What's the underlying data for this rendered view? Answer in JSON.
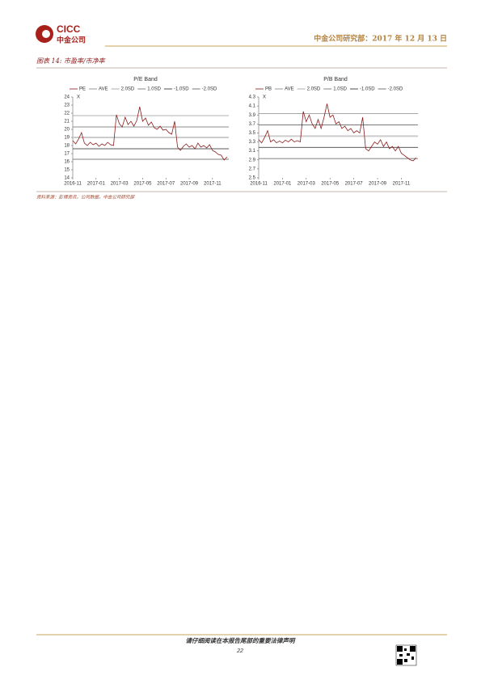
{
  "header": {
    "logo_text": "CICC",
    "logo_sub": "中金公司",
    "right": "中金公司研究部：2017 年 12 月 13 日"
  },
  "figure_title": "图表 14: 市盈率/市净率",
  "source": "资料来源：彭博资讯，公司数据，中金公司研究部",
  "footer": {
    "notice": "请仔细阅读在本报告尾部的重要法律声明",
    "page": "22"
  },
  "chart_data": [
    {
      "type": "line",
      "title": "P/E Band",
      "ylabel": "X",
      "xlim": [
        0,
        13.4
      ],
      "xticks": [
        {
          "value": 0,
          "label": "2016-11"
        },
        {
          "value": 2,
          "label": "2017-01"
        },
        {
          "value": 4,
          "label": "2017-03"
        },
        {
          "value": 6,
          "label": "2017-05"
        },
        {
          "value": 8,
          "label": "2017-07"
        },
        {
          "value": 10,
          "label": "2017-09"
        },
        {
          "value": 12,
          "label": "2017-11"
        }
      ],
      "ylim": [
        14,
        24
      ],
      "yticks": [
        14,
        15,
        16,
        17,
        18,
        19,
        20,
        21,
        22,
        23,
        24
      ],
      "series": [
        {
          "name": "PE",
          "color": "#8b1a1a",
          "x": [
            0,
            0.25,
            0.5,
            0.75,
            1,
            1.25,
            1.5,
            1.75,
            2,
            2.25,
            2.5,
            2.75,
            3,
            3.25,
            3.5,
            3.75,
            4,
            4.25,
            4.5,
            4.75,
            5,
            5.25,
            5.5,
            5.75,
            6,
            6.25,
            6.5,
            6.75,
            7,
            7.25,
            7.5,
            7.75,
            8,
            8.25,
            8.5,
            8.75,
            9,
            9.25,
            9.5,
            9.75,
            10,
            10.25,
            10.5,
            10.75,
            11,
            11.25,
            11.5,
            11.75,
            12,
            12.25,
            12.5,
            12.75,
            13,
            13.25
          ],
          "values": [
            18.6,
            18.2,
            18.8,
            19.6,
            18.3,
            18.0,
            18.4,
            18.1,
            18.3,
            17.9,
            18.2,
            18.0,
            18.4,
            18.1,
            18.0,
            21.8,
            20.7,
            20.3,
            21.5,
            20.6,
            21.0,
            20.4,
            21.1,
            22.8,
            21.0,
            21.4,
            20.5,
            20.9,
            20.2,
            20.0,
            20.4,
            19.9,
            20.0,
            19.6,
            19.4,
            21.0,
            17.8,
            17.4,
            17.9,
            18.2,
            17.8,
            18.0,
            17.6,
            18.3,
            17.8,
            18.0,
            17.7,
            18.1,
            17.4,
            17.2,
            16.9,
            16.8,
            16.2,
            16.6
          ]
        }
      ],
      "bands": [
        {
          "name": "AVE",
          "color": "#cccccc",
          "value": 19.0
        },
        {
          "name": "2.0SD",
          "color": "#999999",
          "value": 21.7
        },
        {
          "name": "1.0SD",
          "color": "#666666",
          "value": 20.3
        },
        {
          "name": "-1.0SD",
          "color": "#222222",
          "value": 17.6
        },
        {
          "name": "-2.0SD",
          "color": "#555555",
          "value": 16.3
        }
      ]
    },
    {
      "type": "line",
      "title": "P/B Band",
      "ylabel": "X",
      "xlim": [
        0,
        13.4
      ],
      "xticks": [
        {
          "value": 0,
          "label": "2016-11"
        },
        {
          "value": 2,
          "label": "2017-01"
        },
        {
          "value": 4,
          "label": "2017-03"
        },
        {
          "value": 6,
          "label": "2017-05"
        },
        {
          "value": 8,
          "label": "2017-07"
        },
        {
          "value": 10,
          "label": "2017-09"
        },
        {
          "value": 12,
          "label": "2017-11"
        }
      ],
      "ylim": [
        2.5,
        4.3
      ],
      "yticks": [
        2.5,
        2.7,
        2.9,
        3.1,
        3.3,
        3.5,
        3.7,
        3.9,
        4.1,
        4.3
      ],
      "series": [
        {
          "name": "PB",
          "color": "#8b1a1a",
          "x": [
            0,
            0.25,
            0.5,
            0.75,
            1,
            1.25,
            1.5,
            1.75,
            2,
            2.25,
            2.5,
            2.75,
            3,
            3.25,
            3.5,
            3.75,
            4,
            4.25,
            4.5,
            4.75,
            5,
            5.25,
            5.5,
            5.75,
            6,
            6.25,
            6.5,
            6.75,
            7,
            7.25,
            7.5,
            7.75,
            8,
            8.25,
            8.5,
            8.75,
            9,
            9.25,
            9.5,
            9.75,
            10,
            10.25,
            10.5,
            10.75,
            11,
            11.25,
            11.5,
            11.75,
            12,
            12.25,
            12.5,
            12.75,
            13,
            13.25
          ],
          "values": [
            3.35,
            3.28,
            3.4,
            3.55,
            3.3,
            3.35,
            3.28,
            3.32,
            3.28,
            3.34,
            3.3,
            3.36,
            3.3,
            3.33,
            3.3,
            3.98,
            3.75,
            3.9,
            3.7,
            3.6,
            3.8,
            3.6,
            3.85,
            4.15,
            3.85,
            3.9,
            3.7,
            3.75,
            3.6,
            3.65,
            3.55,
            3.6,
            3.5,
            3.55,
            3.5,
            3.85,
            3.15,
            3.1,
            3.2,
            3.3,
            3.25,
            3.35,
            3.2,
            3.3,
            3.15,
            3.2,
            3.1,
            3.2,
            3.05,
            3.0,
            2.95,
            2.9,
            2.88,
            2.95
          ]
        }
      ],
      "bands": [
        {
          "name": "AVE",
          "color": "#cccccc",
          "value": 3.43
        },
        {
          "name": "2.0SD",
          "color": "#999999",
          "value": 3.93
        },
        {
          "name": "1.0SD",
          "color": "#666666",
          "value": 3.68
        },
        {
          "name": "-1.0SD",
          "color": "#222222",
          "value": 3.18
        },
        {
          "name": "-2.0SD",
          "color": "#555555",
          "value": 2.93
        }
      ]
    }
  ]
}
